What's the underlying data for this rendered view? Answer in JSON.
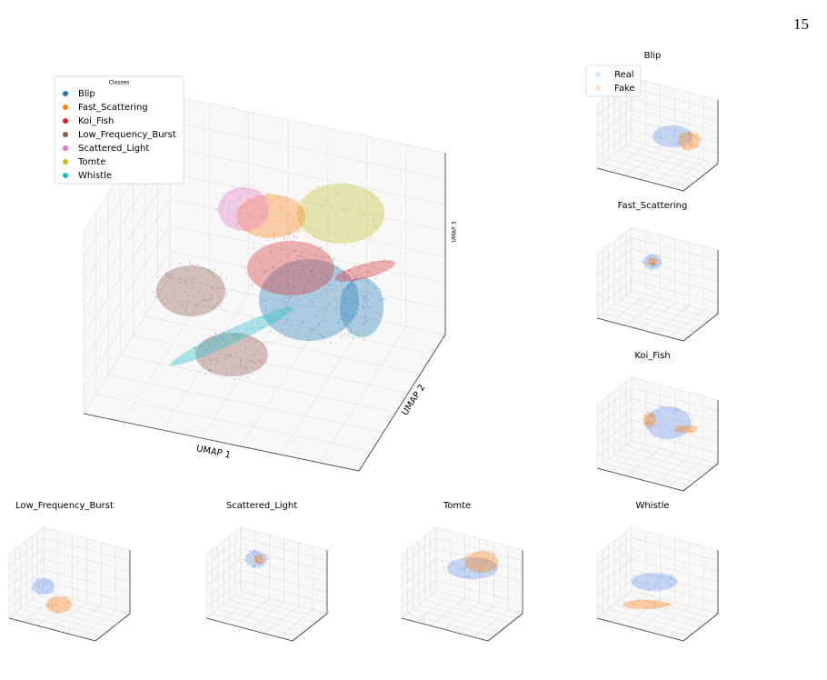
{
  "page_number": "15",
  "main_plot": {
    "legend_title": "Classes",
    "classes": [
      {
        "name": "Blip",
        "color": "#1f77b4"
      },
      {
        "name": "Fast_Scattering",
        "color": "#ff7f0e"
      },
      {
        "name": "Koi_Fish",
        "color": "#d62728"
      },
      {
        "name": "Low_Frequency_Burst",
        "color": "#8c564b"
      },
      {
        "name": "Scattered_Light",
        "color": "#e377c2"
      },
      {
        "name": "Tomte",
        "color": "#bcbd22"
      },
      {
        "name": "Whistle",
        "color": "#17becf"
      }
    ],
    "x_label": "UMAP 1",
    "y_label": "UMAP 2",
    "z_label": "UMAP 3"
  },
  "subplots": {
    "legend": [
      {
        "name": "Real",
        "color": "#6495ed"
      },
      {
        "name": "Fake",
        "color": "#ff7f0e"
      }
    ],
    "titles": [
      "Blip",
      "Fast_Scattering",
      "Koi_Fish",
      "Whistle",
      "Low_Frequency_Burst",
      "Scattered_Light",
      "Tomte"
    ]
  }
}
